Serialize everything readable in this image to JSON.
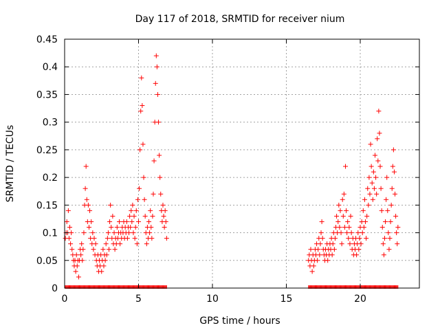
{
  "chart_data": {
    "type": "scatter",
    "title": "Day 117 of 2018, SRMTID for receiver nium",
    "xlabel": "GPS time / hours",
    "ylabel": "SRMTID / TECUs",
    "xlim": [
      0,
      24
    ],
    "ylim": [
      0,
      0.45
    ],
    "grid": true,
    "marker": "+",
    "color": "#ff0000",
    "x_ticks": [
      0,
      5,
      10,
      15,
      20
    ],
    "x_tick_labels": [
      "0",
      "5",
      "10",
      "15",
      "20"
    ],
    "y_ticks": [
      0,
      0.05,
      0.1,
      0.15,
      0.2,
      0.25,
      0.3,
      0.35,
      0.4,
      0.45
    ],
    "y_tick_labels": [
      "0",
      "0.05",
      "0.1",
      "0.15",
      "0.2",
      "0.25",
      "0.3",
      "0.35",
      "0.4",
      "0.45"
    ],
    "series": [
      {
        "name": "SRMTID",
        "points": [
          [
            0.05,
            0.09
          ],
          [
            0.1,
            0.1
          ],
          [
            0.15,
            0.12
          ],
          [
            0.2,
            0.1
          ],
          [
            0.25,
            0.14
          ],
          [
            0.3,
            0.09
          ],
          [
            0.35,
            0.11
          ],
          [
            0.4,
            0.08
          ],
          [
            0.45,
            0.1
          ],
          [
            0.5,
            0.07
          ],
          [
            0.55,
            0.06
          ],
          [
            0.6,
            0.05
          ],
          [
            0.65,
            0.04
          ],
          [
            0.7,
            0.05
          ],
          [
            0.75,
            0.03
          ],
          [
            0.8,
            0.06
          ],
          [
            0.85,
            0.04
          ],
          [
            0.9,
            0.05
          ],
          [
            0.95,
            0.02
          ],
          [
            1.0,
            0.05
          ],
          [
            1.05,
            0.07
          ],
          [
            1.1,
            0.06
          ],
          [
            1.15,
            0.08
          ],
          [
            1.2,
            0.05
          ],
          [
            1.25,
            0.07
          ],
          [
            1.3,
            0.1
          ],
          [
            1.35,
            0.15
          ],
          [
            1.4,
            0.18
          ],
          [
            1.45,
            0.22
          ],
          [
            1.5,
            0.16
          ],
          [
            1.55,
            0.12
          ],
          [
            1.6,
            0.15
          ],
          [
            1.65,
            0.11
          ],
          [
            1.7,
            0.14
          ],
          [
            1.75,
            0.09
          ],
          [
            1.8,
            0.12
          ],
          [
            1.85,
            0.08
          ],
          [
            1.9,
            0.1
          ],
          [
            1.95,
            0.07
          ],
          [
            2.0,
            0.09
          ],
          [
            2.05,
            0.06
          ],
          [
            2.1,
            0.08
          ],
          [
            2.15,
            0.05
          ],
          [
            2.2,
            0.04
          ],
          [
            2.25,
            0.06
          ],
          [
            2.3,
            0.03
          ],
          [
            2.35,
            0.05
          ],
          [
            2.4,
            0.04
          ],
          [
            2.45,
            0.06
          ],
          [
            2.5,
            0.03
          ],
          [
            2.55,
            0.05
          ],
          [
            2.6,
            0.07
          ],
          [
            2.65,
            0.04
          ],
          [
            2.7,
            0.06
          ],
          [
            2.75,
            0.05
          ],
          [
            2.8,
            0.08
          ],
          [
            2.85,
            0.06
          ],
          [
            2.9,
            0.09
          ],
          [
            2.95,
            0.1
          ],
          [
            3.0,
            0.07
          ],
          [
            3.05,
            0.12
          ],
          [
            3.1,
            0.15
          ],
          [
            3.15,
            0.11
          ],
          [
            3.2,
            0.09
          ],
          [
            3.25,
            0.13
          ],
          [
            3.3,
            0.08
          ],
          [
            3.35,
            0.1
          ],
          [
            3.4,
            0.07
          ],
          [
            3.45,
            0.09
          ],
          [
            3.5,
            0.08
          ],
          [
            3.55,
            0.11
          ],
          [
            3.6,
            0.09
          ],
          [
            3.65,
            0.1
          ],
          [
            3.7,
            0.12
          ],
          [
            3.75,
            0.08
          ],
          [
            3.8,
            0.1
          ],
          [
            3.85,
            0.09
          ],
          [
            3.9,
            0.11
          ],
          [
            3.95,
            0.1
          ],
          [
            4.0,
            0.12
          ],
          [
            4.05,
            0.09
          ],
          [
            4.1,
            0.11
          ],
          [
            4.15,
            0.1
          ],
          [
            4.2,
            0.12
          ],
          [
            4.25,
            0.09
          ],
          [
            4.3,
            0.11
          ],
          [
            4.35,
            0.1
          ],
          [
            4.4,
            0.13
          ],
          [
            4.45,
            0.11
          ],
          [
            4.5,
            0.14
          ],
          [
            4.55,
            0.12
          ],
          [
            4.6,
            0.15
          ],
          [
            4.65,
            0.1
          ],
          [
            4.7,
            0.13
          ],
          [
            4.75,
            0.09
          ],
          [
            4.8,
            0.11
          ],
          [
            4.85,
            0.14
          ],
          [
            4.9,
            0.08
          ],
          [
            4.95,
            0.16
          ],
          [
            5.0,
            0.12
          ],
          [
            5.05,
            0.18
          ],
          [
            5.1,
            0.25
          ],
          [
            5.15,
            0.32
          ],
          [
            5.2,
            0.38
          ],
          [
            5.25,
            0.33
          ],
          [
            5.3,
            0.26
          ],
          [
            5.35,
            0.2
          ],
          [
            5.4,
            0.16
          ],
          [
            5.45,
            0.13
          ],
          [
            5.5,
            0.1
          ],
          [
            5.55,
            0.08
          ],
          [
            5.6,
            0.11
          ],
          [
            5.65,
            0.09
          ],
          [
            5.7,
            0.12
          ],
          [
            5.75,
            0.1
          ],
          [
            5.8,
            0.14
          ],
          [
            5.85,
            0.11
          ],
          [
            5.9,
            0.09
          ],
          [
            5.95,
            0.13
          ],
          [
            6.0,
            0.17
          ],
          [
            6.05,
            0.23
          ],
          [
            6.1,
            0.3
          ],
          [
            6.15,
            0.37
          ],
          [
            6.2,
            0.42
          ],
          [
            6.25,
            0.4
          ],
          [
            6.3,
            0.35
          ],
          [
            6.35,
            0.3
          ],
          [
            6.4,
            0.24
          ],
          [
            6.45,
            0.2
          ],
          [
            6.5,
            0.17
          ],
          [
            6.55,
            0.14
          ],
          [
            6.6,
            0.12
          ],
          [
            6.65,
            0.15
          ],
          [
            6.7,
            0.13
          ],
          [
            6.75,
            0.11
          ],
          [
            6.8,
            0.14
          ],
          [
            6.85,
            0.12
          ],
          [
            6.9,
            0.09
          ],
          [
            16.5,
            0.05
          ],
          [
            16.55,
            0.06
          ],
          [
            16.6,
            0.04
          ],
          [
            16.65,
            0.07
          ],
          [
            16.7,
            0.05
          ],
          [
            16.75,
            0.03
          ],
          [
            16.8,
            0.06
          ],
          [
            16.85,
            0.04
          ],
          [
            16.9,
            0.05
          ],
          [
            16.95,
            0.07
          ],
          [
            17.0,
            0.06
          ],
          [
            17.05,
            0.08
          ],
          [
            17.1,
            0.05
          ],
          [
            17.15,
            0.07
          ],
          [
            17.2,
            0.09
          ],
          [
            17.25,
            0.06
          ],
          [
            17.3,
            0.08
          ],
          [
            17.35,
            0.1
          ],
          [
            17.4,
            0.12
          ],
          [
            17.45,
            0.09
          ],
          [
            17.5,
            0.07
          ],
          [
            17.55,
            0.06
          ],
          [
            17.6,
            0.05
          ],
          [
            17.65,
            0.07
          ],
          [
            17.7,
            0.06
          ],
          [
            17.75,
            0.08
          ],
          [
            17.8,
            0.05
          ],
          [
            17.85,
            0.07
          ],
          [
            17.9,
            0.06
          ],
          [
            17.95,
            0.08
          ],
          [
            18.0,
            0.07
          ],
          [
            18.05,
            0.09
          ],
          [
            18.1,
            0.06
          ],
          [
            18.15,
            0.08
          ],
          [
            18.2,
            0.1
          ],
          [
            18.25,
            0.07
          ],
          [
            18.3,
            0.09
          ],
          [
            18.35,
            0.11
          ],
          [
            18.4,
            0.13
          ],
          [
            18.45,
            0.1
          ],
          [
            18.5,
            0.12
          ],
          [
            18.55,
            0.15
          ],
          [
            18.6,
            0.11
          ],
          [
            18.65,
            0.14
          ],
          [
            18.7,
            0.1
          ],
          [
            18.75,
            0.08
          ],
          [
            18.8,
            0.16
          ],
          [
            18.85,
            0.13
          ],
          [
            18.9,
            0.17
          ],
          [
            18.95,
            0.11
          ],
          [
            19.0,
            0.22
          ],
          [
            19.05,
            0.14
          ],
          [
            19.1,
            0.1
          ],
          [
            19.15,
            0.12
          ],
          [
            19.2,
            0.09
          ],
          [
            19.25,
            0.11
          ],
          [
            19.3,
            0.08
          ],
          [
            19.35,
            0.13
          ],
          [
            19.4,
            0.1
          ],
          [
            19.45,
            0.07
          ],
          [
            19.5,
            0.09
          ],
          [
            19.55,
            0.06
          ],
          [
            19.6,
            0.08
          ],
          [
            19.65,
            0.07
          ],
          [
            19.7,
            0.09
          ],
          [
            19.75,
            0.06
          ],
          [
            19.8,
            0.08
          ],
          [
            19.85,
            0.1
          ],
          [
            19.9,
            0.07
          ],
          [
            19.95,
            0.09
          ],
          [
            20.0,
            0.11
          ],
          [
            20.05,
            0.08
          ],
          [
            20.1,
            0.12
          ],
          [
            20.15,
            0.1
          ],
          [
            20.2,
            0.14
          ],
          [
            20.25,
            0.11
          ],
          [
            20.3,
            0.16
          ],
          [
            20.35,
            0.12
          ],
          [
            20.4,
            0.09
          ],
          [
            20.45,
            0.13
          ],
          [
            20.5,
            0.18
          ],
          [
            20.55,
            0.15
          ],
          [
            20.6,
            0.2
          ],
          [
            20.65,
            0.17
          ],
          [
            20.7,
            0.26
          ],
          [
            20.75,
            0.22
          ],
          [
            20.8,
            0.19
          ],
          [
            20.85,
            0.16
          ],
          [
            20.9,
            0.21
          ],
          [
            20.95,
            0.18
          ],
          [
            21.0,
            0.24
          ],
          [
            21.05,
            0.2
          ],
          [
            21.1,
            0.17
          ],
          [
            21.15,
            0.27
          ],
          [
            21.2,
            0.23
          ],
          [
            21.25,
            0.32
          ],
          [
            21.3,
            0.28
          ],
          [
            21.35,
            0.22
          ],
          [
            21.4,
            0.18
          ],
          [
            21.45,
            0.14
          ],
          [
            21.5,
            0.11
          ],
          [
            21.55,
            0.08
          ],
          [
            21.6,
            0.06
          ],
          [
            21.65,
            0.09
          ],
          [
            21.7,
            0.12
          ],
          [
            21.75,
            0.16
          ],
          [
            21.8,
            0.2
          ],
          [
            21.85,
            0.14
          ],
          [
            21.9,
            0.1
          ],
          [
            21.95,
            0.07
          ],
          [
            22.0,
            0.09
          ],
          [
            22.05,
            0.12
          ],
          [
            22.1,
            0.15
          ],
          [
            22.15,
            0.18
          ],
          [
            22.2,
            0.22
          ],
          [
            22.25,
            0.25
          ],
          [
            22.3,
            0.21
          ],
          [
            22.35,
            0.17
          ],
          [
            22.4,
            0.13
          ],
          [
            22.45,
            0.1
          ],
          [
            22.5,
            0.08
          ],
          [
            22.55,
            0.11
          ]
        ]
      }
    ]
  }
}
